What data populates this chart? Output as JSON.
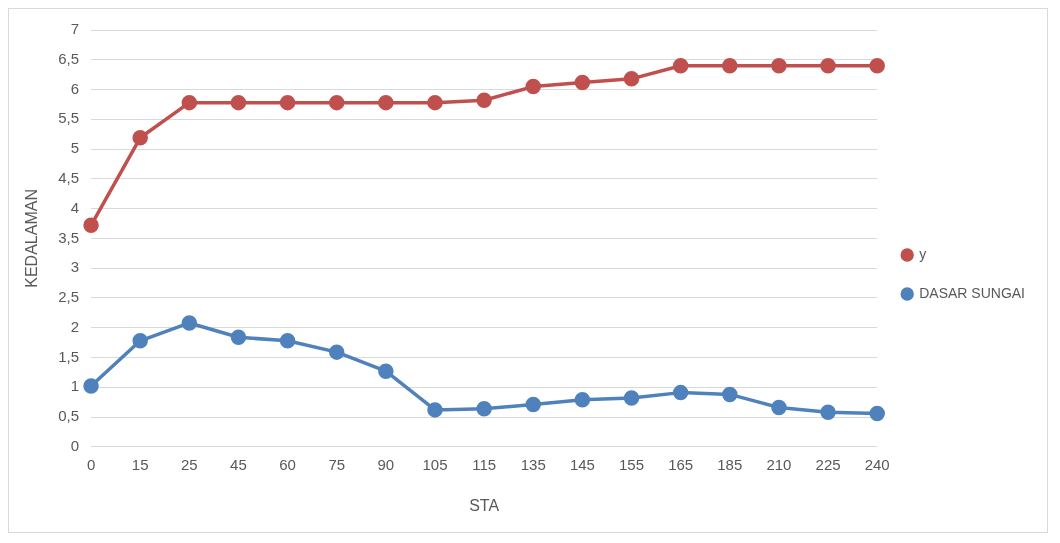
{
  "chart_data": {
    "type": "line",
    "xlabel": "STA",
    "ylabel": "KEDALAMAN",
    "categories": [
      "0",
      "15",
      "25",
      "45",
      "60",
      "75",
      "90",
      "105",
      "115",
      "135",
      "145",
      "155",
      "165",
      "185",
      "210",
      "225",
      "240"
    ],
    "series": [
      {
        "name": "y",
        "color": "#c0504d",
        "values": [
          3.72,
          5.19,
          5.78,
          5.78,
          5.78,
          5.78,
          5.78,
          5.78,
          5.82,
          6.05,
          6.12,
          6.18,
          6.4,
          6.4,
          6.4,
          6.4,
          6.4
        ]
      },
      {
        "name": "DASAR SUNGAI",
        "color": "#4f81bd",
        "values": [
          1.02,
          1.78,
          2.08,
          1.84,
          1.78,
          1.59,
          1.27,
          0.62,
          0.64,
          0.71,
          0.79,
          0.82,
          0.91,
          0.88,
          0.66,
          0.58,
          0.56
        ]
      }
    ],
    "ylim": [
      0,
      7
    ],
    "yticks": [
      0,
      {
        "value": 0.5,
        "label": "0,5"
      },
      1,
      {
        "value": 1.5,
        "label": "1,5"
      },
      2,
      {
        "value": 2.5,
        "label": "2,5"
      },
      3,
      {
        "value": 3.5,
        "label": "3,5"
      },
      4,
      {
        "value": 4.5,
        "label": "4,5"
      },
      5,
      {
        "value": 5.5,
        "label": "5,5"
      },
      6,
      {
        "value": 6.5,
        "label": "6,5"
      },
      7
    ],
    "grid": "y",
    "legend": "right",
    "marker": "circle",
    "line_style": "solid"
  }
}
